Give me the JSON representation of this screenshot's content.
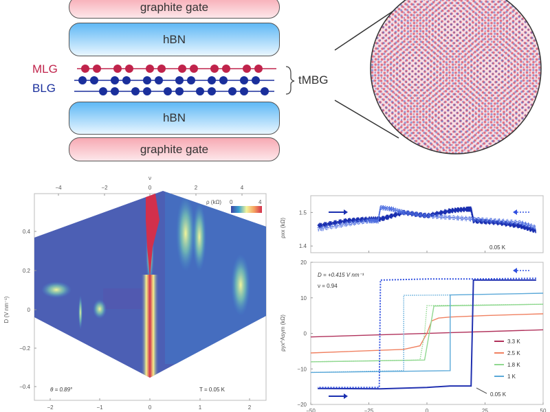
{
  "schematic": {
    "layers": [
      {
        "label": "graphite gate",
        "type": "gate"
      },
      {
        "label": "hBN",
        "type": "hbn"
      },
      {
        "label": "hBN",
        "type": "hbn"
      },
      {
        "label": "graphite gate",
        "type": "gate"
      }
    ],
    "mlg_label": "MLG",
    "blg_label": "BLG",
    "stack_label": "tMBG",
    "colors": {
      "mlg": "#c0234b",
      "blg": "#1a2f9c",
      "gate": "#f7a9b3",
      "hbn": "#5fb8f5"
    }
  },
  "moire": {
    "description": "moire lattice",
    "colors": {
      "a": "#d9536b",
      "b": "#4a5fc0"
    }
  },
  "chart_data": [
    {
      "type": "heatmap",
      "title": "",
      "xlabel_top": "ν",
      "xlabel_bottom": "",
      "ylabel": "D (V nm⁻¹)",
      "x_top_ticks": [
        "−4",
        "−2",
        "0",
        "2",
        "4"
      ],
      "x_bottom_ticks": [
        "−2",
        "−1",
        "0",
        "1",
        "2"
      ],
      "y_ticks": [
        "0.4",
        "0.2",
        "0",
        "−0.2",
        "−0.4"
      ],
      "ylim": [
        -0.48,
        0.57
      ],
      "xlim_top": [
        -5,
        5
      ],
      "colorbar": {
        "label": "ρ (kΩ)",
        "min": "0",
        "max": "4",
        "colormap": "spectral-reversed"
      },
      "annotations": [
        "θ = 0.89°",
        "T = 0.05 K"
      ],
      "features": [
        {
          "nu": 0,
          "D_range": [
            -0.48,
            0.54
          ],
          "rho": "high",
          "note": "resistive peak at charge neutrality"
        },
        {
          "nu": 1,
          "D_range": [
            0.1,
            0.5
          ],
          "rho": "medium"
        },
        {
          "nu": 2,
          "D_range": [
            0.15,
            0.45
          ],
          "rho": "medium"
        },
        {
          "nu": 4,
          "D_range": [
            -0.1,
            0.2
          ],
          "rho": "medium"
        },
        {
          "nu": -4.5,
          "D_range": [
            0.05,
            0.15
          ],
          "rho": "medium"
        },
        {
          "nu": -2.2,
          "D_range": [
            -0.05,
            0.02
          ],
          "rho": "medium"
        }
      ]
    },
    {
      "type": "line",
      "title": "",
      "ylabel": "ρxx (kΩ)",
      "y_ticks": [
        "1.5",
        "1.4"
      ],
      "ylim": [
        1.38,
        1.55
      ],
      "xlim": [
        -50,
        50
      ],
      "annotations": [
        "0.05 K"
      ],
      "series": [
        {
          "name": "forward sweep",
          "style": "solid",
          "x": [
            -47,
            -35,
            -25,
            -20,
            -10,
            0,
            10,
            17,
            19,
            20,
            30,
            40,
            47
          ],
          "y": [
            1.46,
            1.475,
            1.48,
            1.48,
            1.5,
            1.49,
            1.505,
            1.51,
            1.51,
            1.475,
            1.47,
            1.46,
            1.445
          ]
        },
        {
          "name": "backward sweep",
          "style": "dotted",
          "x": [
            -47,
            -35,
            -25,
            -21,
            -20,
            -15,
            -10,
            0,
            10,
            20,
            30,
            40,
            47
          ],
          "y": [
            1.45,
            1.465,
            1.475,
            1.475,
            1.515,
            1.51,
            1.5,
            1.49,
            1.485,
            1.48,
            1.475,
            1.47,
            1.455
          ]
        }
      ]
    },
    {
      "type": "line",
      "title": "",
      "ylabel": "ρyx^Asym (kΩ)",
      "xlabel": "",
      "x_ticks": [
        "−50",
        "−25",
        "0",
        "25",
        "50"
      ],
      "y_ticks": [
        "20",
        "10",
        "0",
        "−10",
        "−20"
      ],
      "xlim": [
        -50,
        50
      ],
      "ylim": [
        -20,
        20
      ],
      "annotations": [
        "D = +0.415 V nm⁻¹",
        "ν = 0.94",
        "0.05 K"
      ],
      "legend": {
        "position": "center-right",
        "entries": [
          "3.3 K",
          "2.5 K",
          "1.8 K",
          "1 K"
        ]
      },
      "series": [
        {
          "name": "3.3 K",
          "color": "#b0305a",
          "x": [
            -50,
            50
          ],
          "y": [
            -1,
            1
          ]
        },
        {
          "name": "2.5 K",
          "color": "#f08060",
          "x": [
            -50,
            -10,
            -3,
            0,
            2,
            5,
            10,
            25,
            50
          ],
          "y": [
            -5.5,
            -4.5,
            -3.5,
            0,
            3.5,
            4.3,
            4.6,
            5,
            5.5
          ]
        },
        {
          "name": "1.8 K",
          "color": "#90d890",
          "x": [
            -50,
            -1,
            1,
            3,
            50
          ],
          "y": [
            -8,
            -7.5,
            0,
            7.7,
            8.2
          ]
        },
        {
          "name": "1.8 K (reverse)",
          "color": "#90d890",
          "style": "dotted",
          "x": [
            50,
            0,
            -1,
            -3,
            -50
          ],
          "y": [
            8.2,
            7.8,
            0,
            -7.5,
            -8
          ]
        },
        {
          "name": "1 K",
          "color": "#5aa8d8",
          "x": [
            -50,
            10,
            10,
            50
          ],
          "y": [
            -11,
            -10.5,
            10.8,
            11.3
          ]
        },
        {
          "name": "1 K (reverse)",
          "color": "#5aa8d8",
          "style": "dotted",
          "x": [
            10,
            -10,
            -10,
            -50
          ],
          "y": [
            10.8,
            10.7,
            -10.5,
            -11
          ]
        },
        {
          "name": "0.05 K",
          "color": "#2030b0",
          "x": [
            -47,
            -20,
            0,
            10,
            19,
            20,
            47
          ],
          "y": [
            -15.5,
            -15.6,
            -15.2,
            -14.8,
            -14.8,
            15,
            15
          ]
        },
        {
          "name": "0.05 K (reverse)",
          "color": "#3050e0",
          "style": "dotted",
          "x": [
            47,
            20,
            0,
            -20,
            -20.5,
            -47
          ],
          "y": [
            15.5,
            15.3,
            15.3,
            15,
            -15.2,
            -15.2
          ]
        }
      ]
    }
  ]
}
